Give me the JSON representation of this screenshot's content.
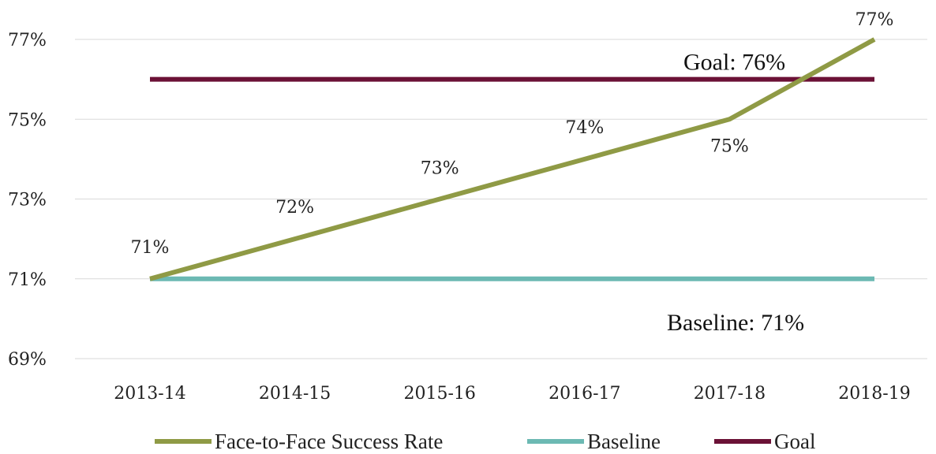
{
  "chart_data": {
    "type": "line",
    "categories": [
      "2013-14",
      "2014-15",
      "2015-16",
      "2016-17",
      "2017-18",
      "2018-19"
    ],
    "y_ticks": [
      "69%",
      "71%",
      "73%",
      "75%",
      "77%"
    ],
    "ylim": [
      69,
      77
    ],
    "grid": true,
    "legend_position": "bottom",
    "series": [
      {
        "name": "Face-to-Face Success Rate",
        "values": [
          71,
          72,
          73,
          74,
          75,
          77
        ],
        "labels": [
          "71%",
          "72%",
          "73%",
          "74%",
          "75%",
          "77%"
        ],
        "color": "#8f9a45"
      },
      {
        "name": "Baseline",
        "values": [
          71,
          71,
          71,
          71,
          71,
          71
        ],
        "color": "#6cb9b3"
      },
      {
        "name": "Goal",
        "values": [
          76,
          76,
          76,
          76,
          76,
          76
        ],
        "color": "#6b1136"
      }
    ],
    "annotations": [
      {
        "text": "Goal: 76%",
        "series": "Goal"
      },
      {
        "text": "Baseline: 71%",
        "series": "Baseline"
      }
    ]
  }
}
